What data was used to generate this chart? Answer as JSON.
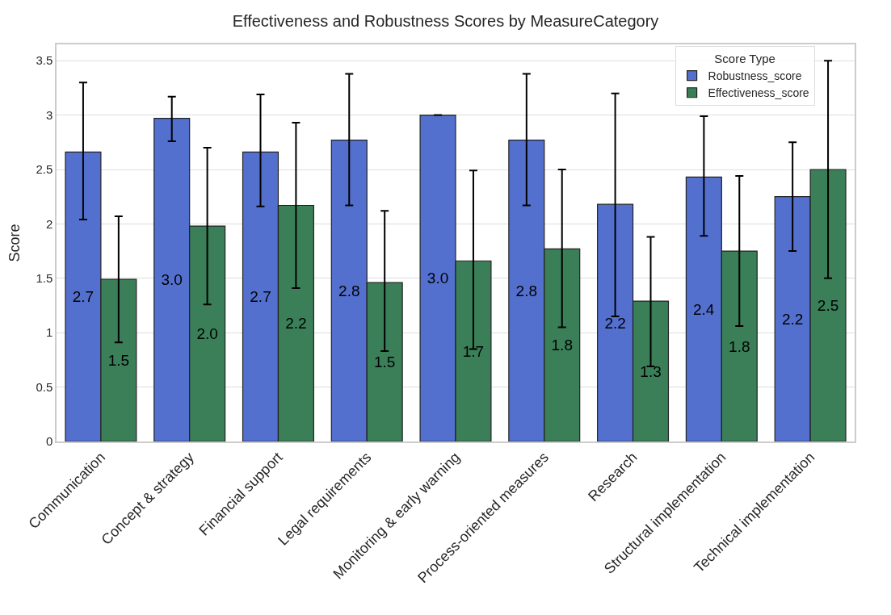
{
  "chart_data": {
    "type": "bar",
    "title": "Effectiveness and Robustness Scores by MeasureCategory",
    "ylabel": "Score",
    "legend_title": "Score Type",
    "categories": [
      "Communication",
      "Concept & strategy",
      "Financial support",
      "Legal requirements",
      "Monitoring & early warning",
      "Process-oriented measures",
      "Research",
      "Structural implementation",
      "Technical implementation"
    ],
    "series": [
      {
        "name": "Robustness_score",
        "color": "#5470cf",
        "values": [
          2.66,
          2.97,
          2.66,
          2.77,
          3.0,
          2.77,
          2.18,
          2.43,
          2.25
        ],
        "errors": [
          [
            2.04,
            3.3
          ],
          [
            2.76,
            3.17
          ],
          [
            2.16,
            3.19
          ],
          [
            2.17,
            3.38
          ],
          [
            3.0,
            3.0
          ],
          [
            2.17,
            3.38
          ],
          [
            1.15,
            3.2
          ],
          [
            1.89,
            2.99
          ],
          [
            1.75,
            2.75
          ]
        ],
        "value_labels": [
          "2.7",
          "3.0",
          "2.7",
          "2.8",
          "3.0",
          "2.8",
          "2.2",
          "2.4",
          "2.2"
        ]
      },
      {
        "name": "Effectiveness_score",
        "color": "#3a7f58",
        "values": [
          1.49,
          1.98,
          2.17,
          1.46,
          1.66,
          1.77,
          1.29,
          1.75,
          2.5
        ],
        "errors": [
          [
            0.91,
            2.07
          ],
          [
            1.26,
            2.7
          ],
          [
            1.41,
            2.93
          ],
          [
            0.83,
            2.12
          ],
          [
            0.85,
            2.49
          ],
          [
            1.05,
            2.5
          ],
          [
            0.69,
            1.88
          ],
          [
            1.06,
            2.44
          ],
          [
            1.5,
            3.5
          ]
        ],
        "value_labels": [
          "1.5",
          "2.0",
          "2.2",
          "1.5",
          "1.7",
          "1.8",
          "1.3",
          "1.8",
          "2.5"
        ]
      }
    ],
    "ylim": [
      0,
      3.65
    ],
    "yticks": [
      0,
      0.5,
      1,
      1.5,
      2,
      2.5,
      3,
      3.5
    ],
    "grid": "y",
    "legend": "top right"
  }
}
